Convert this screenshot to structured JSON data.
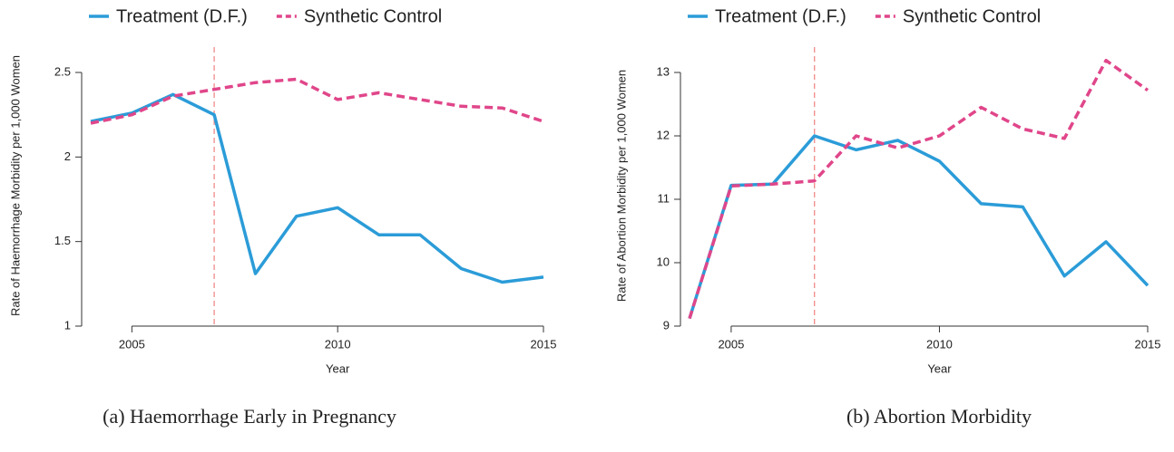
{
  "chart_data": [
    {
      "type": "line",
      "caption": "(a) Haemorrhage Early in Pregnancy",
      "xlabel": "Year",
      "ylabel": "Rate of Haemorrhage Morbidity per 1,000 Women",
      "x": [
        2004,
        2005,
        2006,
        2007,
        2008,
        2009,
        2010,
        2011,
        2012,
        2013,
        2014,
        2015
      ],
      "xlim": [
        2004,
        2015
      ],
      "xticks": [
        2005,
        2010,
        2015
      ],
      "ylim": [
        1,
        2.65
      ],
      "yticks": [
        1,
        1.5,
        2,
        2.5
      ],
      "vline_x": 2007,
      "vline_color": "#f08a8a",
      "series": [
        {
          "name": "Treatment (D.F.)",
          "color": "#2b9cd8",
          "dash": false,
          "values": [
            2.21,
            2.26,
            2.37,
            2.25,
            1.31,
            1.65,
            1.7,
            1.54,
            1.54,
            1.34,
            1.26,
            1.29
          ]
        },
        {
          "name": "Synthetic Control",
          "color": "#e0468a",
          "dash": true,
          "values": [
            2.2,
            2.25,
            2.36,
            2.4,
            2.44,
            2.46,
            2.34,
            2.38,
            2.34,
            2.3,
            2.29,
            2.21
          ]
        }
      ]
    },
    {
      "type": "line",
      "caption": "(b) Abortion Morbidity",
      "xlabel": "Year",
      "ylabel": "Rate of Abortion Morbidity per 1,000 Women",
      "x": [
        2004,
        2005,
        2006,
        2007,
        2008,
        2009,
        2010,
        2011,
        2012,
        2013,
        2014,
        2015
      ],
      "xlim": [
        2004,
        2015
      ],
      "xticks": [
        2005,
        2010,
        2015
      ],
      "ylim": [
        9,
        13.4
      ],
      "yticks": [
        9,
        10,
        11,
        12,
        13
      ],
      "vline_x": 2007,
      "vline_color": "#f08a8a",
      "series": [
        {
          "name": "Treatment (D.F.)",
          "color": "#2b9cd8",
          "dash": false,
          "values": [
            9.12,
            11.22,
            11.24,
            12.0,
            11.78,
            11.93,
            11.6,
            10.93,
            10.88,
            9.79,
            10.33,
            9.64
          ]
        },
        {
          "name": "Synthetic Control",
          "color": "#e0468a",
          "dash": true,
          "values": [
            9.12,
            11.21,
            11.24,
            11.29,
            12.0,
            11.81,
            12.0,
            12.45,
            12.11,
            11.96,
            13.19,
            12.72
          ]
        }
      ]
    }
  ]
}
